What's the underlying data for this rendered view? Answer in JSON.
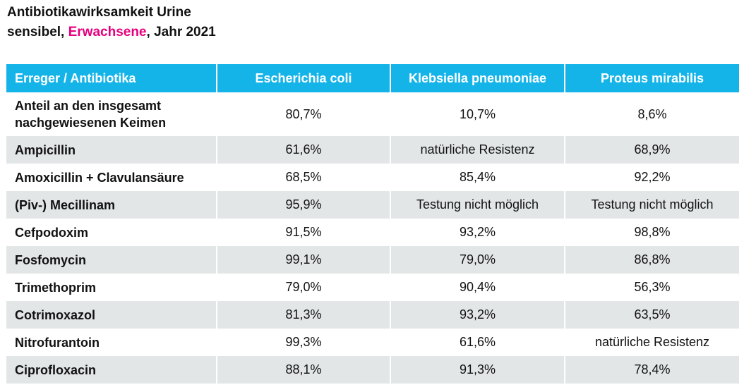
{
  "title": {
    "line1": "Antibiotikawirksamkeit Urine",
    "line2_prefix": "sensibel, ",
    "line2_highlight": "Erwachsene",
    "line2_suffix": ", Jahr 2021",
    "highlight_color": "#e6007e"
  },
  "colors": {
    "header_bg": "#14b4e9",
    "header_text": "#ffffff",
    "row_shade": "#e3e6e7"
  },
  "table": {
    "headers": [
      "Erreger / Antibiotika",
      "Escherichia coli",
      "Klebsiella pneumoniae",
      "Proteus mirabilis"
    ],
    "rows": [
      {
        "label_line1": "Anteil an den insgesamt",
        "label_line2": "nachgewiesenen Keimen",
        "values": [
          "80,7%",
          "10,7%",
          "8,6%"
        ]
      },
      {
        "label": "Ampicillin",
        "values": [
          "61,6%",
          "natürliche Resistenz",
          "68,9%"
        ]
      },
      {
        "label": "Amoxicillin + Clavulansäure",
        "values": [
          "68,5%",
          "85,4%",
          "92,2%"
        ]
      },
      {
        "label": "(Piv-) Mecillinam",
        "values": [
          "95,9%",
          "Testung nicht möglich",
          "Testung nicht möglich"
        ]
      },
      {
        "label": "Cefpodoxim",
        "values": [
          "91,5%",
          "93,2%",
          "98,8%"
        ]
      },
      {
        "label": "Fosfomycin",
        "values": [
          "99,1%",
          "79,0%",
          "86,8%"
        ]
      },
      {
        "label": "Trimethoprim",
        "values": [
          "79,0%",
          "90,4%",
          "56,3%"
        ]
      },
      {
        "label": "Cotrimoxazol",
        "values": [
          "81,3%",
          "93,2%",
          "63,5%"
        ]
      },
      {
        "label": "Nitrofurantoin",
        "values": [
          "99,3%",
          "61,6%",
          "natürliche Resistenz"
        ]
      },
      {
        "label": "Ciprofloxacin",
        "values": [
          "88,1%",
          "91,3%",
          "78,4%"
        ]
      }
    ]
  }
}
